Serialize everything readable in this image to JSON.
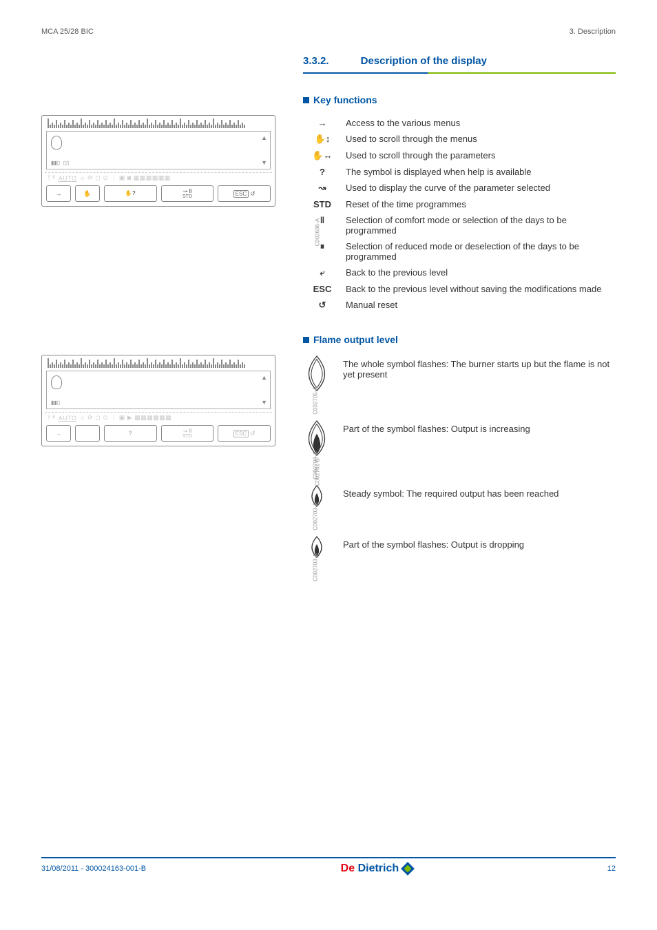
{
  "header": {
    "left": "MCA 25/28 BIC",
    "right": "3.  Description"
  },
  "section": {
    "number": "3.3.2.",
    "title": "Description of the display"
  },
  "panel": {
    "status_text": "AUTO",
    "btn_arrow": "→",
    "btn_esc_label": "ESC",
    "btn_std_label": "STD",
    "tag1": "C002696-A",
    "tag2": "C002701-B"
  },
  "key_functions": {
    "heading": "Key functions",
    "rows": [
      {
        "sym": "→",
        "desc": "Access to the various menus"
      },
      {
        "sym": "✋↕",
        "desc": "Used to scroll through the menus"
      },
      {
        "sym": "✋↔",
        "desc": "Used to scroll through the parameters"
      },
      {
        "sym": "?",
        "desc": "The symbol is displayed when help is available"
      },
      {
        "sym": "↝",
        "desc": "Used to display the curve of the parameter selected"
      },
      {
        "sym": "STD",
        "desc": "Reset of the time programmes"
      },
      {
        "sym": "‖",
        "desc": "Selection of comfort mode or selection of the days to be programmed"
      },
      {
        "sym": "⏸",
        "desc": "Selection of reduced mode or deselection of the days to be programmed"
      },
      {
        "sym": "⤶",
        "desc": "Back to the previous level"
      },
      {
        "sym": "ESC",
        "desc": "Back to the previous level without saving the modifications made"
      },
      {
        "sym": "↺",
        "desc": "Manual reset"
      }
    ]
  },
  "flame": {
    "heading": "Flame output level",
    "rows": [
      {
        "tag": "C002705-A",
        "big": true,
        "fill": "none",
        "text": "The whole symbol flashes: The burner starts up but the flame is not yet present"
      },
      {
        "tag": "C002704-A",
        "big": true,
        "fill": "half",
        "text": "Part of the symbol flashes: Output is increasing"
      },
      {
        "tag": "C002703-A",
        "big": false,
        "fill": "full",
        "text": "Steady symbol: The required output has been reached"
      },
      {
        "tag": "C002703-A",
        "big": false,
        "fill": "half",
        "text": "Part of the symbol flashes: Output is dropping"
      }
    ]
  },
  "footer": {
    "left": "31/08/2011  - 300024163-001-B",
    "logo": "De Dietrich",
    "page": "12"
  }
}
